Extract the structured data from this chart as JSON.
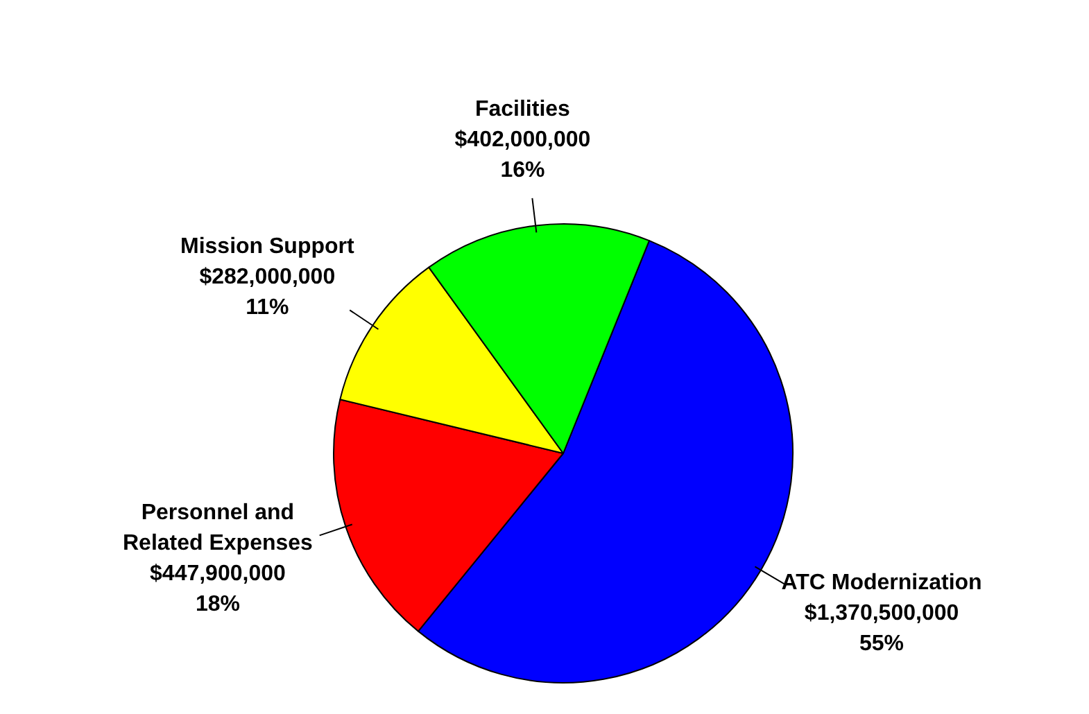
{
  "chart_data": {
    "type": "pie",
    "categories": [
      "ATC Modernization",
      "Personnel and Related Expenses",
      "Mission Support",
      "Facilities"
    ],
    "values": [
      1370500000,
      447900000,
      282000000,
      402000000
    ],
    "value_labels": [
      "$1,370,500,000\n55%",
      "$447,900,000\n18%",
      "$282,000,000\n11%",
      "$402,000,000\n16%"
    ],
    "colors": [
      "#0000ff",
      "#ff0000",
      "#ffff00",
      "#00ff00"
    ],
    "legend": false
  }
}
